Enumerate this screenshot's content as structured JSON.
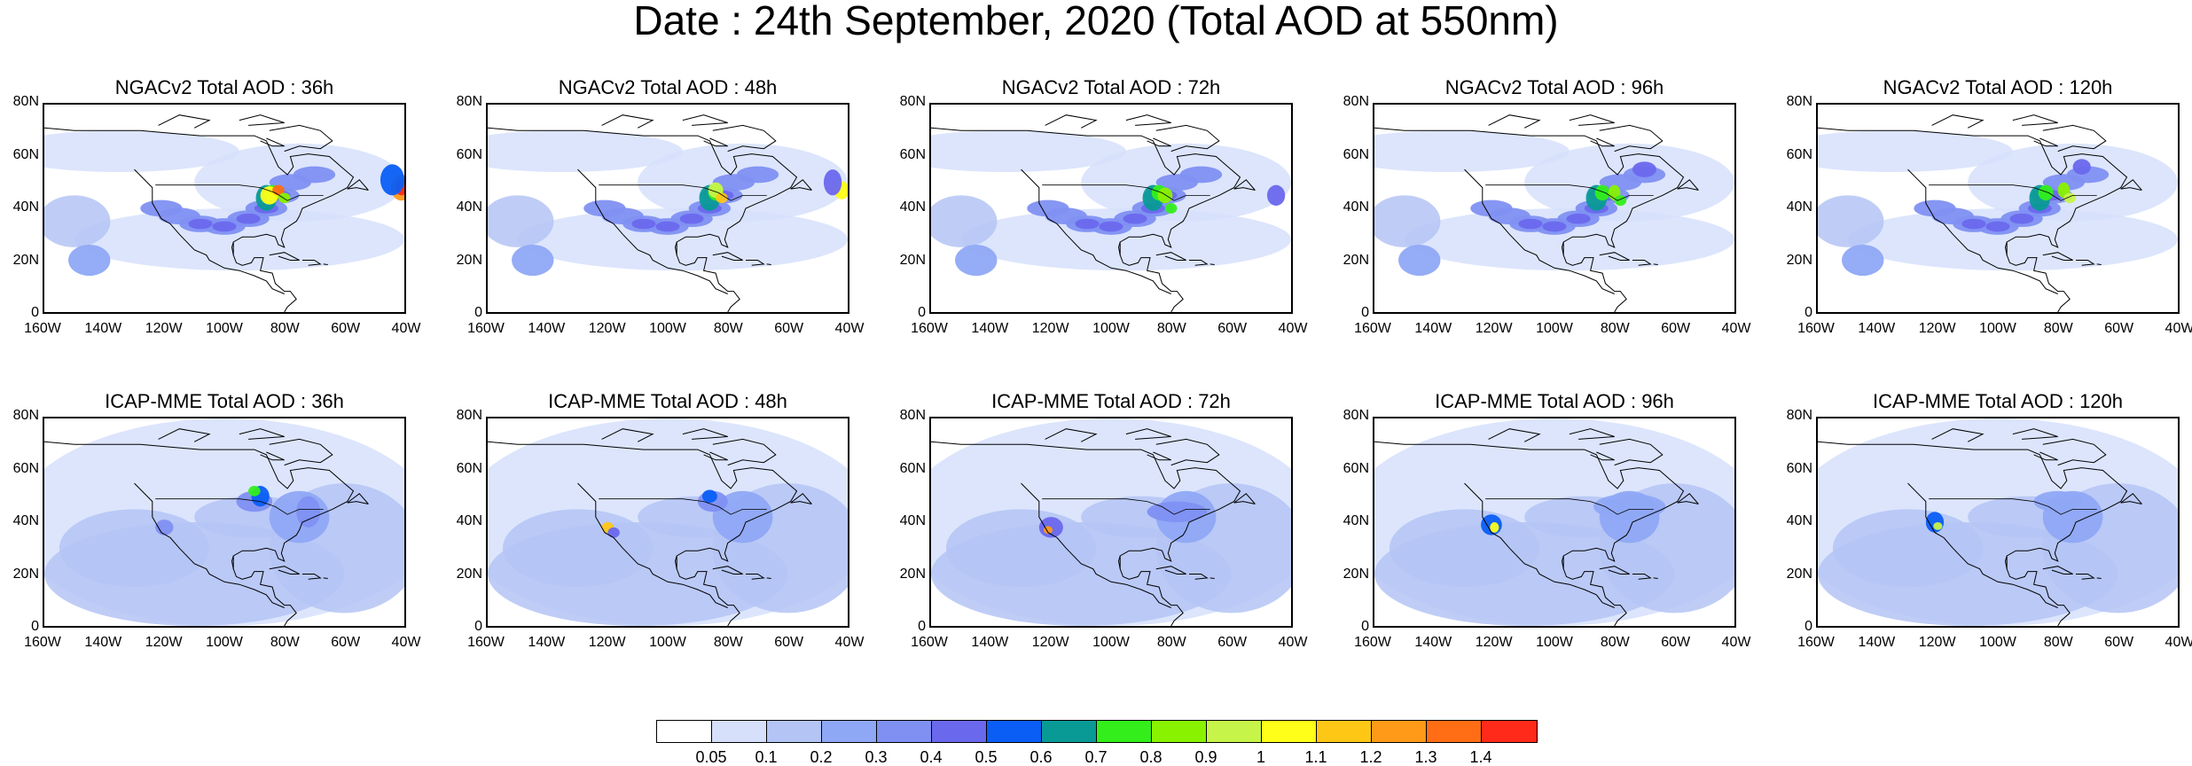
{
  "figure": {
    "title": "Date : 24th September, 2020 (Total AOD at 550nm)"
  },
  "panels": [
    {
      "title": "NGACv2 Total AOD : 36h",
      "model": "NGACv2",
      "lead": "36h"
    },
    {
      "title": "NGACv2 Total AOD : 48h",
      "model": "NGACv2",
      "lead": "48h"
    },
    {
      "title": "NGACv2 Total AOD : 72h",
      "model": "NGACv2",
      "lead": "72h"
    },
    {
      "title": "NGACv2 Total AOD : 96h",
      "model": "NGACv2",
      "lead": "96h"
    },
    {
      "title": "NGACv2 Total AOD : 120h",
      "model": "NGACv2",
      "lead": "120h"
    },
    {
      "title": "ICAP-MME Total AOD : 36h",
      "model": "ICAP-MME",
      "lead": "36h"
    },
    {
      "title": "ICAP-MME Total AOD : 48h",
      "model": "ICAP-MME",
      "lead": "48h"
    },
    {
      "title": "ICAP-MME Total AOD : 72h",
      "model": "ICAP-MME",
      "lead": "72h"
    },
    {
      "title": "ICAP-MME Total AOD : 96h",
      "model": "ICAP-MME",
      "lead": "96h"
    },
    {
      "title": "ICAP-MME Total AOD : 120h",
      "model": "ICAP-MME",
      "lead": "120h"
    }
  ],
  "axes": {
    "lat_ticks": [
      "0",
      "20N",
      "40N",
      "60N",
      "80N"
    ],
    "lon_ticks": [
      "160W",
      "140W",
      "120W",
      "100W",
      "80W",
      "60W",
      "40W"
    ],
    "lon_range": [
      -160,
      -40
    ],
    "lat_range": [
      0,
      80
    ]
  },
  "colorbar": {
    "labels": [
      "0.05",
      "0.1",
      "0.2",
      "0.3",
      "0.4",
      "0.5",
      "0.6",
      "0.7",
      "0.8",
      "0.9",
      "1",
      "1.1",
      "1.2",
      "1.3",
      "1.4"
    ],
    "colors": [
      "#ffffff",
      "#d6e0fb",
      "#b4c4f5",
      "#8fa8f5",
      "#7f90f2",
      "#6a68ed",
      "#0a5ef5",
      "#0a9a96",
      "#33ee1b",
      "#89f200",
      "#c7f448",
      "#ffff19",
      "#ffc715",
      "#ff9a18",
      "#ff6d14",
      "#ff2a1a"
    ]
  }
}
